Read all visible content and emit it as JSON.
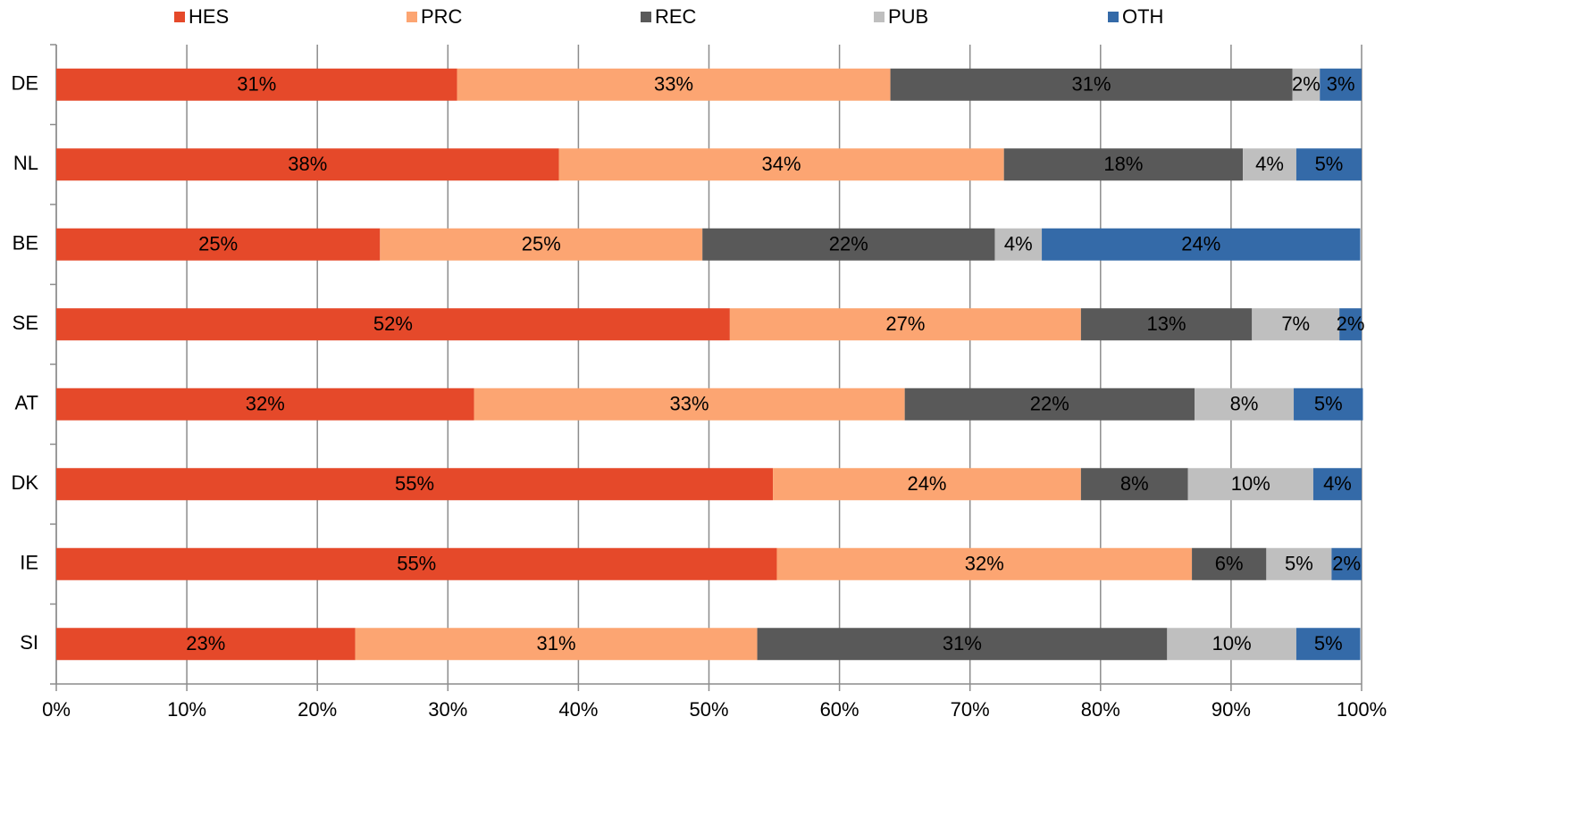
{
  "chart_data": {
    "type": "stacked-bar-horizontal",
    "categories": [
      "DE",
      "NL",
      "BE",
      "SE",
      "AT",
      "DK",
      "IE",
      "SI"
    ],
    "series": [
      {
        "name": "HES",
        "color": "#e5492a",
        "values": [
          30.7,
          38.5,
          24.8,
          51.6,
          32.0,
          54.9,
          55.2,
          22.9
        ],
        "value_labels": [
          "31%",
          "38%",
          "25%",
          "52%",
          "32%",
          "55%",
          "55%",
          "23%"
        ]
      },
      {
        "name": "PRC",
        "color": "#fca572",
        "values": [
          33.2,
          34.1,
          24.7,
          26.9,
          33.0,
          23.6,
          31.8,
          30.8
        ],
        "value_labels": [
          "33%",
          "34%",
          "25%",
          "27%",
          "33%",
          "24%",
          "32%",
          "31%"
        ]
      },
      {
        "name": "REC",
        "color": "#595959",
        "values": [
          30.8,
          18.3,
          22.4,
          13.1,
          22.2,
          8.2,
          5.7,
          31.4
        ],
        "value_labels": [
          "31%",
          "18%",
          "22%",
          "13%",
          "22%",
          "8%",
          "6%",
          "31%"
        ]
      },
      {
        "name": "PUB",
        "color": "#bfbfbf",
        "values": [
          2.1,
          4.1,
          3.6,
          6.7,
          7.6,
          9.6,
          5.0,
          9.9
        ],
        "value_labels": [
          "2%",
          "4%",
          "4%",
          "7%",
          "8%",
          "10%",
          "5%",
          "10%"
        ]
      },
      {
        "name": "OTH",
        "color": "#346aa8",
        "values": [
          3.2,
          5.0,
          24.4,
          1.7,
          5.3,
          3.7,
          2.3,
          4.9
        ],
        "value_labels": [
          "3%",
          "5%",
          "24%",
          "2%",
          "5%",
          "4%",
          "2%",
          "5%"
        ]
      }
    ],
    "xlim": [
      0,
      100
    ],
    "xticks": [
      {
        "value": 0,
        "label": "0%"
      },
      {
        "value": 10,
        "label": "10%"
      },
      {
        "value": 20,
        "label": "20%"
      },
      {
        "value": 30,
        "label": "30%"
      },
      {
        "value": 40,
        "label": "40%"
      },
      {
        "value": 50,
        "label": "50%"
      },
      {
        "value": 60,
        "label": "60%"
      },
      {
        "value": 70,
        "label": "70%"
      },
      {
        "value": 80,
        "label": "80%"
      },
      {
        "value": 90,
        "label": "90%"
      },
      {
        "value": 100,
        "label": "100%"
      }
    ],
    "grid": true,
    "legend": "top"
  }
}
